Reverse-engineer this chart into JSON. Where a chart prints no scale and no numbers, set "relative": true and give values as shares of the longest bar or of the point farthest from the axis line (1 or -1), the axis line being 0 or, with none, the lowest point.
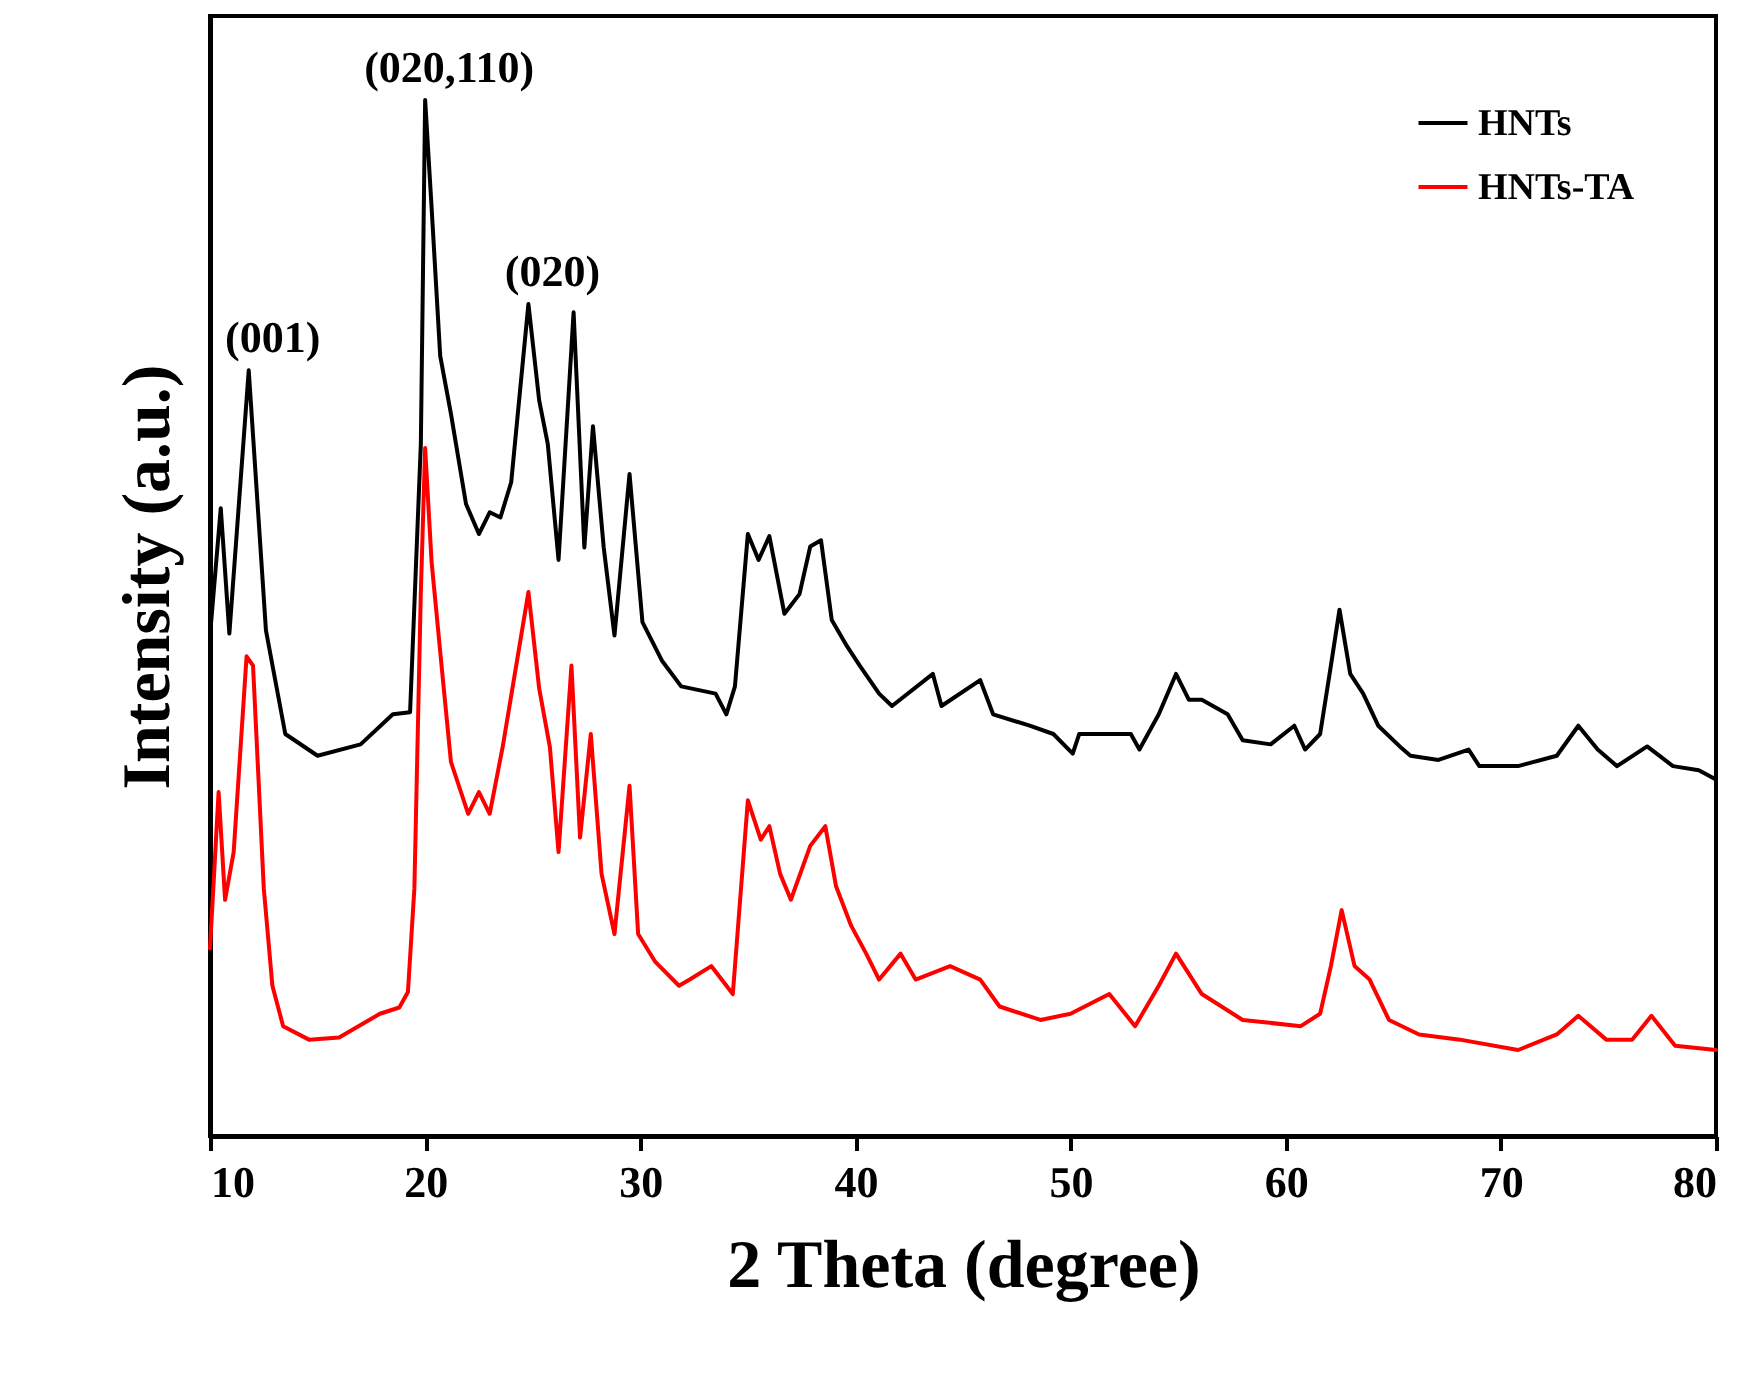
{
  "chart_data": {
    "type": "line",
    "xlabel": "2 Theta (degree)",
    "ylabel": "Intensity (a.u.)",
    "relative": true,
    "xlim": [
      10,
      80
    ],
    "xticks": [
      10,
      20,
      30,
      40,
      50,
      60,
      70,
      80
    ],
    "tick_labels": "x",
    "grid": false,
    "legend": "top right",
    "marker": "none",
    "line_style": "solid",
    "annotations": [
      {
        "text": "(001)",
        "x": 11.8,
        "y": 0.739
      },
      {
        "text": "(020,110)",
        "x": 20,
        "y": 1.0
      },
      {
        "text": "(020)",
        "x": 24.8,
        "y": 0.803
      }
    ],
    "series": [
      {
        "name": "HNTs",
        "color": "#000000",
        "x": [
          10,
          10.5,
          10.9,
          11.8,
          12.6,
          13.5,
          15,
          17,
          18.5,
          19.3,
          19.8,
          20.0,
          20.3,
          20.7,
          21.2,
          21.9,
          22.5,
          23.0,
          23.5,
          24.0,
          24.8,
          25.3,
          25.7,
          26.2,
          26.9,
          27.4,
          27.8,
          28.3,
          28.8,
          29.5,
          30.1,
          31,
          31.9,
          33.5,
          34.0,
          34.4,
          35.0,
          35.5,
          36.0,
          36.7,
          37.4,
          37.9,
          38.4,
          38.9,
          39.6,
          40.2,
          41.1,
          41.7,
          43.6,
          44.0,
          45.8,
          46.4,
          48.1,
          49.2,
          50.1,
          50.4,
          51.4,
          52.8,
          53.2,
          54.1,
          54.9,
          55.5,
          56.1,
          57.3,
          58.0,
          59.3,
          60.4,
          60.9,
          61.6,
          62.1,
          62.5,
          63.0,
          63.6,
          64.3,
          65.3,
          65.8,
          67.1,
          68.5,
          69.0,
          70.8,
          72.6,
          73.6,
          74.5,
          75.4,
          76.8,
          78.0,
          79.2,
          80
        ],
        "values": [
          0.483,
          0.606,
          0.485,
          0.739,
          0.488,
          0.388,
          0.367,
          0.378,
          0.407,
          0.409,
          0.668,
          1.0,
          0.896,
          0.753,
          0.697,
          0.61,
          0.581,
          0.602,
          0.597,
          0.631,
          0.803,
          0.71,
          0.668,
          0.556,
          0.795,
          0.568,
          0.685,
          0.568,
          0.483,
          0.639,
          0.496,
          0.459,
          0.434,
          0.427,
          0.407,
          0.434,
          0.581,
          0.556,
          0.579,
          0.504,
          0.523,
          0.569,
          0.575,
          0.498,
          0.473,
          0.454,
          0.427,
          0.415,
          0.446,
          0.415,
          0.44,
          0.407,
          0.396,
          0.388,
          0.369,
          0.388,
          0.388,
          0.388,
          0.373,
          0.407,
          0.446,
          0.421,
          0.421,
          0.407,
          0.382,
          0.378,
          0.396,
          0.373,
          0.388,
          0.454,
          0.508,
          0.446,
          0.427,
          0.396,
          0.376,
          0.367,
          0.363,
          0.373,
          0.357,
          0.357,
          0.367,
          0.396,
          0.373,
          0.357,
          0.376,
          0.357,
          0.353,
          0.344
        ]
      },
      {
        "name": "HNTs-TA",
        "color": "#ff0000",
        "x": [
          10,
          10.4,
          10.7,
          11.1,
          11.7,
          12.0,
          12.5,
          12.9,
          13.4,
          14.6,
          16.0,
          17.9,
          18.8,
          19.2,
          19.5,
          19.8,
          20.0,
          20.3,
          20.8,
          21.2,
          22.0,
          22.5,
          23.0,
          23.6,
          24.8,
          25.3,
          25.8,
          26.2,
          26.8,
          27.2,
          27.7,
          28.2,
          28.8,
          29.5,
          29.9,
          30.7,
          31.8,
          32.3,
          33.3,
          34.3,
          35.0,
          35.6,
          36.0,
          36.5,
          37.0,
          37.9,
          38.6,
          39.1,
          39.8,
          40.5,
          41.1,
          42.1,
          42.8,
          44.4,
          45.8,
          46.7,
          48.6,
          50.0,
          51.8,
          53.0,
          54.1,
          54.9,
          56.1,
          58.0,
          60.7,
          61.6,
          62.1,
          62.6,
          63.2,
          63.9,
          64.8,
          66.2,
          68.1,
          70.8,
          72.6,
          73.6,
          74.9,
          76.1,
          77.0,
          78.1,
          80
        ],
        "values": [
          0.181,
          0.332,
          0.228,
          0.274,
          0.463,
          0.454,
          0.239,
          0.145,
          0.106,
          0.093,
          0.095,
          0.118,
          0.124,
          0.139,
          0.239,
          0.525,
          0.664,
          0.554,
          0.446,
          0.361,
          0.311,
          0.332,
          0.311,
          0.375,
          0.525,
          0.432,
          0.375,
          0.274,
          0.454,
          0.288,
          0.388,
          0.253,
          0.195,
          0.338,
          0.195,
          0.168,
          0.145,
          0.151,
          0.164,
          0.137,
          0.324,
          0.286,
          0.299,
          0.253,
          0.228,
          0.28,
          0.299,
          0.241,
          0.203,
          0.176,
          0.151,
          0.176,
          0.151,
          0.164,
          0.151,
          0.125,
          0.112,
          0.118,
          0.137,
          0.106,
          0.145,
          0.176,
          0.137,
          0.112,
          0.106,
          0.118,
          0.164,
          0.218,
          0.164,
          0.151,
          0.112,
          0.098,
          0.093,
          0.083,
          0.098,
          0.116,
          0.093,
          0.093,
          0.116,
          0.087,
          0.083
        ]
      }
    ]
  }
}
